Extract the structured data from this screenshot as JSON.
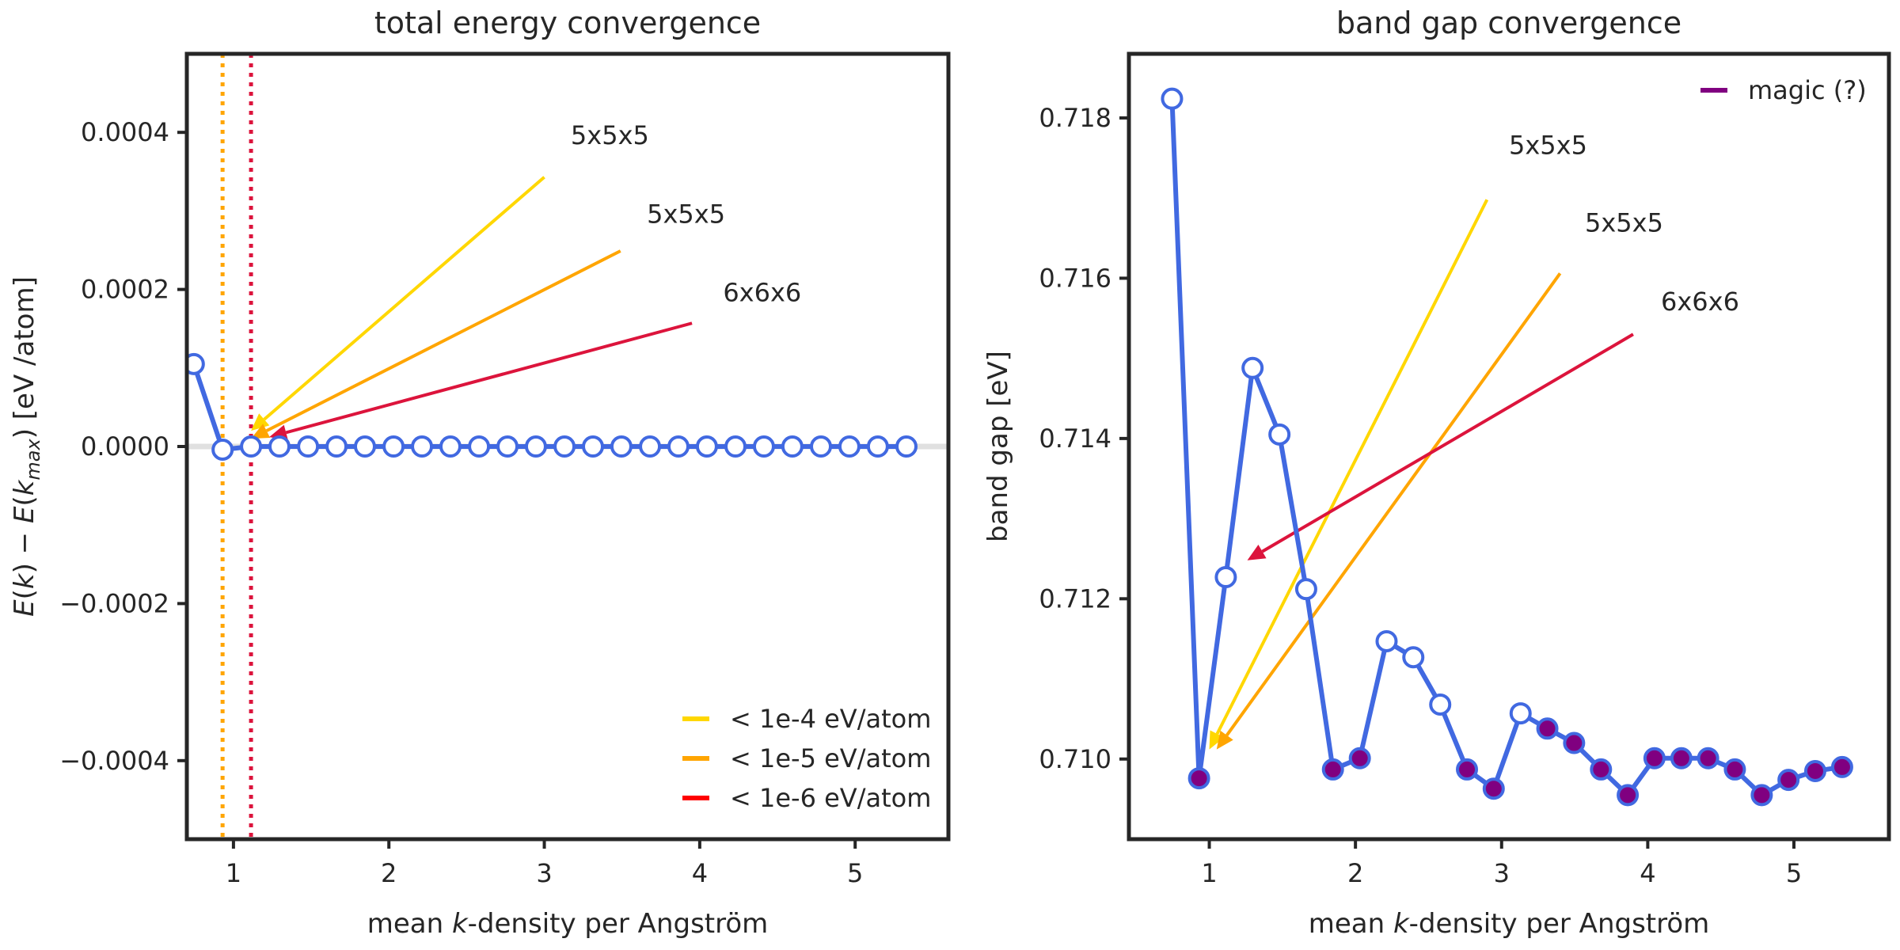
{
  "chart_data": [
    {
      "type": "line",
      "title": "total energy convergence",
      "xlabel": {
        "pre": "mean ",
        "italic": "k",
        "post": "-density per Angström"
      },
      "ylabel": "E(k) − E(k_max) [eV /atom]",
      "xlim": [
        0.7,
        5.6
      ],
      "ylim": [
        -0.0005,
        0.0005
      ],
      "xticks": [
        1,
        2,
        3,
        4,
        5
      ],
      "xtick_labels": [
        "1",
        "2",
        "3",
        "4",
        "5"
      ],
      "yticks": [
        -0.0004,
        -0.0002,
        0.0,
        0.0002,
        0.0004
      ],
      "ytick_labels": [
        "−0.0004",
        "−0.0002",
        "0.0000",
        "0.0002",
        "0.0004"
      ],
      "series": [
        {
          "color": "#4169E1",
          "x": [
            0.745,
            0.93,
            1.113,
            1.296,
            1.48,
            1.663,
            1.846,
            2.03,
            2.213,
            2.396,
            2.58,
            2.763,
            2.946,
            3.13,
            3.313,
            3.496,
            3.68,
            3.863,
            4.046,
            4.23,
            4.413,
            4.596,
            4.78,
            4.963,
            5.146,
            5.33
          ],
          "values": [
            0.000105,
            -4e-06,
            0,
            0,
            0,
            0,
            0,
            0,
            0,
            0,
            0,
            0,
            0,
            0,
            0,
            0,
            0,
            0,
            0,
            0,
            0,
            0,
            0,
            0,
            0,
            0
          ]
        }
      ],
      "vlines": [
        {
          "x": 0.93,
          "color": "#FFA500"
        },
        {
          "x": 1.113,
          "color": "#DC143C"
        }
      ],
      "annotations": [
        {
          "text": "5x5x5",
          "text_x": 3.17,
          "text_y": 0.000385,
          "tail_x": 3.0,
          "tail_y": 0.000343,
          "head_x": 1.113,
          "head_y": 2e-05,
          "color": "#FFD700"
        },
        {
          "text": "5x5x5",
          "text_x": 3.66,
          "text_y": 0.000285,
          "tail_x": 3.49,
          "tail_y": 0.000249,
          "head_x": 1.113,
          "head_y": 1e-05,
          "color": "#FFA500"
        },
        {
          "text": "6x6x6",
          "text_x": 4.15,
          "text_y": 0.000185,
          "tail_x": 3.95,
          "tail_y": 0.000157,
          "head_x": 1.23,
          "head_y": 1.2e-05,
          "color": "#DC143C"
        }
      ],
      "legend_position": "bottom-right",
      "legend": [
        {
          "label": "< 1e-4 eV/atom",
          "color": "#FFD700"
        },
        {
          "label": "< 1e-5 eV/atom",
          "color": "#FFA500"
        },
        {
          "label": "< 1e-6 eV/atom",
          "color": "#FF0000"
        }
      ],
      "grid": false
    },
    {
      "type": "line",
      "title": "band gap convergence",
      "xlabel": {
        "pre": "mean ",
        "italic": "k",
        "post": "-density per Angström"
      },
      "ylabel": "band gap [eV]",
      "xlim": [
        0.45,
        5.65
      ],
      "ylim": [
        0.709,
        0.7188
      ],
      "xticks": [
        1,
        2,
        3,
        4,
        5
      ],
      "xtick_labels": [
        "1",
        "2",
        "3",
        "4",
        "5"
      ],
      "yticks": [
        0.71,
        0.712,
        0.714,
        0.716,
        0.718
      ],
      "ytick_labels": [
        "0.710",
        "0.712",
        "0.714",
        "0.716",
        "0.718"
      ],
      "series": [
        {
          "color": "#4169E1",
          "x": [
            0.745,
            0.93,
            1.113,
            1.296,
            1.48,
            1.663,
            1.846,
            2.03,
            2.213,
            2.396,
            2.58,
            2.763,
            2.946,
            3.13,
            3.313,
            3.496,
            3.68,
            3.863,
            4.046,
            4.23,
            4.413,
            4.596,
            4.78,
            4.963,
            5.146,
            5.33
          ],
          "values": [
            0.71824,
            0.70976,
            0.71227,
            0.71488,
            0.71405,
            0.71212,
            0.70987,
            0.71001,
            0.71147,
            0.71127,
            0.71068,
            0.70987,
            0.70963,
            0.71057,
            0.71038,
            0.7102,
            0.70987,
            0.70955,
            0.71001,
            0.71001,
            0.71001,
            0.70987,
            0.70955,
            0.70974,
            0.70985,
            0.7099
          ],
          "magic": [
            false,
            true,
            false,
            false,
            false,
            false,
            true,
            true,
            false,
            false,
            false,
            true,
            true,
            false,
            true,
            true,
            true,
            true,
            true,
            true,
            true,
            true,
            true,
            true,
            true,
            true
          ]
        }
      ],
      "annotations": [
        {
          "text": "5x5x5",
          "text_x": 3.05,
          "text_y": 0.71755,
          "tail_x": 2.9,
          "tail_y": 0.71698,
          "head_x": 1.0,
          "head_y": 0.71012,
          "color": "#FFD700"
        },
        {
          "text": "5x5x5",
          "text_x": 3.57,
          "text_y": 0.71658,
          "tail_x": 3.4,
          "tail_y": 0.71606,
          "head_x": 1.05,
          "head_y": 0.71012,
          "color": "#FFA500"
        },
        {
          "text": "6x6x6",
          "text_x": 4.09,
          "text_y": 0.7156,
          "tail_x": 3.9,
          "tail_y": 0.7153,
          "head_x": 1.26,
          "head_y": 0.71248,
          "color": "#DC143C"
        }
      ],
      "legend_position": "top-right",
      "legend": [
        {
          "label": "magic (?)",
          "color": "#800080"
        }
      ],
      "grid": false
    }
  ]
}
